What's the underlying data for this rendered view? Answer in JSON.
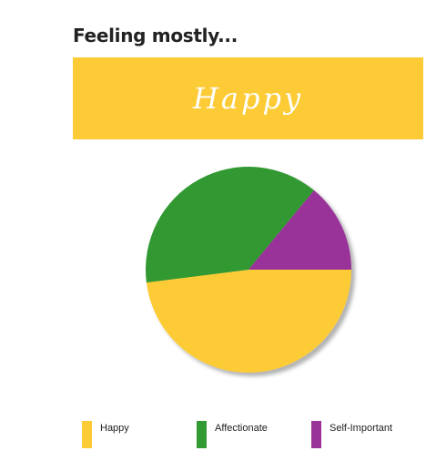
{
  "header": {
    "title": "Feeling mostly..."
  },
  "banner": {
    "mood": "Happy",
    "color": "#fccb36",
    "text_color": "#ffffff"
  },
  "chart_data": {
    "type": "pie",
    "categories": [
      "Happy",
      "Affectionate",
      "Self-Important"
    ],
    "values": [
      48,
      38,
      14
    ],
    "colors": [
      "#fccb36",
      "#339933",
      "#993399"
    ],
    "start_angle_deg": 0,
    "direction": "clockwise",
    "legend": "bottom",
    "legend_entries": [
      {
        "label": "Happy",
        "color": "#fccb36"
      },
      {
        "label": "Affectionate",
        "color": "#339933"
      },
      {
        "label": "Self-Important",
        "color": "#993399"
      }
    ]
  }
}
